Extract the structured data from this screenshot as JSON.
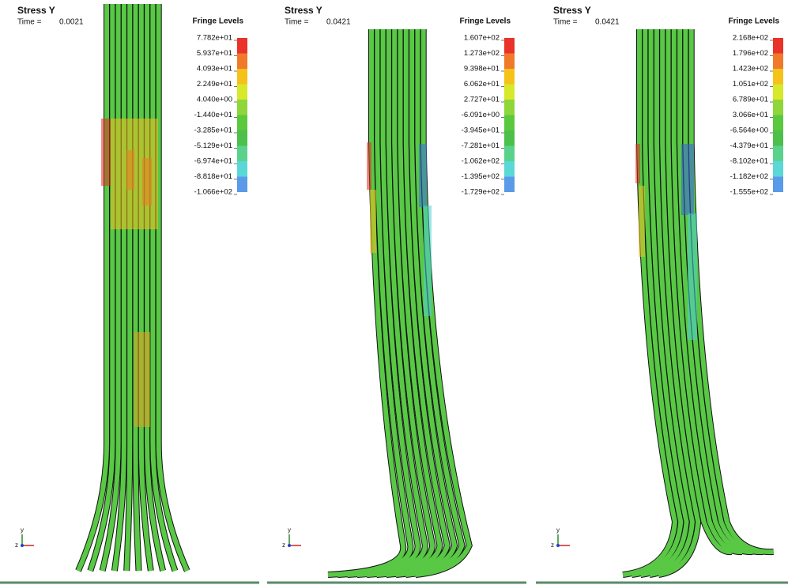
{
  "panels": [
    {
      "title": "Stress Y",
      "time_label": "Time =",
      "time": "0.0021",
      "legend_title": "Fringe Levels",
      "levels": [
        "7.782e+01",
        "5.937e+01",
        "4.093e+01",
        "2.249e+01",
        "4.040e+00",
        "-1.440e+01",
        "-3.285e+01",
        "-5.129e+01",
        "-6.974e+01",
        "-8.818e+01",
        "-1.066e+02"
      ],
      "axis_labels": [
        "y",
        "z"
      ]
    },
    {
      "title": "Stress Y",
      "time_label": "Time =",
      "time": "0.0421",
      "legend_title": "Fringe Levels",
      "levels": [
        "1.607e+02",
        "1.273e+02",
        "9.398e+01",
        "6.062e+01",
        "2.727e+01",
        "-6.091e+00",
        "-3.945e+01",
        "-7.281e+01",
        "-1.062e+02",
        "-1.395e+02",
        "-1.729e+02"
      ],
      "axis_labels": [
        "y",
        "z"
      ]
    },
    {
      "title": "Stress Y",
      "time_label": "Time =",
      "time": "0.0421",
      "legend_title": "Fringe Levels",
      "levels": [
        "2.168e+02",
        "1.796e+02",
        "1.423e+02",
        "1.051e+02",
        "6.789e+01",
        "3.066e+01",
        "-6.564e+00",
        "-4.379e+01",
        "-8.102e+01",
        "-1.182e+02",
        "-1.555e+02"
      ],
      "axis_labels": [
        "y",
        "z"
      ]
    }
  ]
}
